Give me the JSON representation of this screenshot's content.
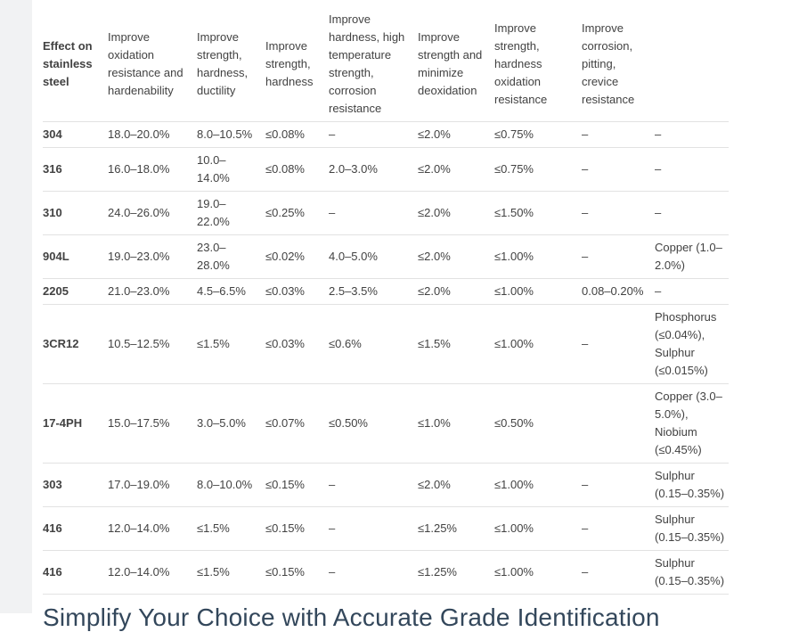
{
  "theme": {
    "text_color": "#424242",
    "border_color": "#e2e2e2",
    "heading_color": "#33475b"
  },
  "page": {
    "section_heading": "Simplify Your Choice with Accurate Grade Identification"
  },
  "table": {
    "columns": [
      "Effect on stainless steel",
      "Improve oxidation resistance and hardenability",
      "Improve strength, hardness, ductility",
      "Improve strength, hardness",
      "Improve hardness, high temperature strength, corrosion resistance",
      "Improve strength and minimize deoxidation",
      "Improve strength, hardness oxidation resistance",
      "Improve corrosion, pitting, crevice resistance",
      ""
    ],
    "rows": [
      {
        "grade": "304",
        "values": [
          "18.0–20.0%",
          "8.0–10.5%",
          "≤0.08%",
          "–",
          "≤2.0%",
          "≤0.75%",
          "–",
          "–"
        ]
      },
      {
        "grade": "316",
        "values": [
          "16.0–18.0%",
          "10.0–14.0%",
          "≤0.08%",
          "2.0–3.0%",
          "≤2.0%",
          "≤0.75%",
          "–",
          "–"
        ]
      },
      {
        "grade": "310",
        "values": [
          "24.0–26.0%",
          "19.0–22.0%",
          "≤0.25%",
          "–",
          "≤2.0%",
          "≤1.50%",
          "–",
          "–"
        ]
      },
      {
        "grade": "904L",
        "values": [
          "19.0–23.0%",
          "23.0–28.0%",
          "≤0.02%",
          "4.0–5.0%",
          "≤2.0%",
          "≤1.00%",
          "–",
          "Copper (1.0–2.0%)"
        ]
      },
      {
        "grade": "2205",
        "values": [
          "21.0–23.0%",
          "4.5–6.5%",
          "≤0.03%",
          "2.5–3.5%",
          "≤2.0%",
          "≤1.00%",
          "0.08–0.20%",
          "–"
        ]
      },
      {
        "grade": "3CR12",
        "values": [
          "10.5–12.5%",
          "≤1.5%",
          "≤0.03%",
          "≤0.6%",
          "≤1.5%",
          "≤1.00%",
          "–",
          "Phosphorus (≤0.04%), Sulphur (≤0.015%)"
        ]
      },
      {
        "grade": "17-4PH",
        "values": [
          "15.0–17.5%",
          "3.0–5.0%",
          "≤0.07%",
          "≤0.50%",
          "≤1.0%",
          "≤0.50%",
          "",
          "Copper (3.0–5.0%), Niobium (≤0.45%)"
        ]
      },
      {
        "grade": "303",
        "values": [
          "17.0–19.0%",
          "8.0–10.0%",
          "≤0.15%",
          "–",
          "≤2.0%",
          "≤1.00%",
          "–",
          "Sulphur (0.15–0.35%)"
        ]
      },
      {
        "grade": "416",
        "values": [
          "12.0–14.0%",
          "≤1.5%",
          "≤0.15%",
          "–",
          "≤1.25%",
          "≤1.00%",
          "–",
          "Sulphur (0.15–0.35%)"
        ]
      },
      {
        "grade": "416",
        "values": [
          "12.0–14.0%",
          "≤1.5%",
          "≤0.15%",
          "–",
          "≤1.25%",
          "≤1.00%",
          "–",
          "Sulphur (0.15–0.35%)"
        ]
      }
    ]
  }
}
